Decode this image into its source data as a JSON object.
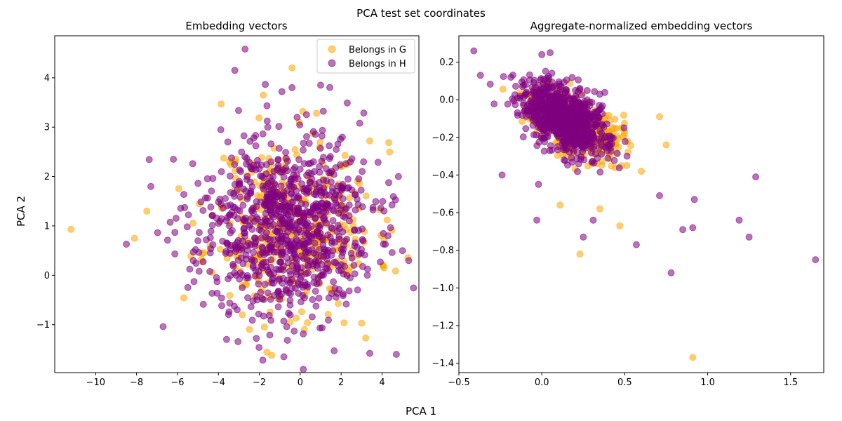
{
  "figure": {
    "suptitle": "PCA test set coordinates",
    "xlabel": "PCA 1",
    "ylabel": "PCA 2"
  },
  "colors": {
    "G": "#ffa500",
    "H": "#800080",
    "alpha": 0.55
  },
  "chart_data": [
    {
      "type": "scatter",
      "title": "Embedding vectors",
      "xlabel": "PCA 1",
      "ylabel": "PCA 2",
      "xlim": [
        -12.0,
        5.8
      ],
      "ylim": [
        -1.97,
        4.85
      ],
      "xticks": [
        -10,
        -8,
        -6,
        -4,
        -2,
        0,
        2,
        4
      ],
      "yticks": [
        -1,
        0,
        1,
        2,
        3,
        4
      ],
      "xtick_labels": [
        "−10",
        "−8",
        "−6",
        "−4",
        "−2",
        "0",
        "2",
        "4"
      ],
      "ytick_labels": [
        "−1",
        "0",
        "1",
        "2",
        "3",
        "4"
      ],
      "legend": {
        "position": "top-right",
        "entries": [
          "Belongs in G",
          "Belongs in H"
        ]
      },
      "grid": false,
      "series": [
        {
          "name": "Belongs in G",
          "color": "#ffa500",
          "outliers": [
            [
              -11.2,
              0.93
            ],
            [
              -0.4,
              4.2
            ],
            [
              -1.8,
              3.65
            ],
            [
              3.4,
              2.72
            ],
            [
              -0.05,
              3.1
            ],
            [
              2.0,
              2.2
            ],
            [
              3.2,
              -1.27
            ],
            [
              -1.4,
              -1.62
            ],
            [
              -8.1,
              0.75
            ],
            [
              -7.5,
              1.3
            ],
            [
              0.8,
              3.28
            ],
            [
              4.1,
              0.72
            ],
            [
              -0.5,
              -0.95
            ],
            [
              0.2,
              -1.1
            ],
            [
              3.0,
              -0.97
            ]
          ],
          "cluster": {
            "n": 360,
            "mean": [
              -0.3,
              1.0
            ],
            "sd": [
              2.0,
              0.85
            ],
            "seed": 11
          }
        },
        {
          "name": "Belongs in H",
          "color": "#800080",
          "outliers": [
            [
              -2.7,
              4.58
            ],
            [
              -3.2,
              4.15
            ],
            [
              1.0,
              3.85
            ],
            [
              -0.4,
              3.8
            ],
            [
              2.3,
              3.49
            ],
            [
              -8.5,
              0.63
            ],
            [
              5.0,
              0.5
            ],
            [
              4.7,
              -1.6
            ],
            [
              3.4,
              -1.58
            ],
            [
              -0.8,
              -1.65
            ],
            [
              -3.6,
              -1.3
            ],
            [
              -6.7,
              -1.04
            ],
            [
              -7.3,
              1.8
            ],
            [
              -6.2,
              2.35
            ],
            [
              4.8,
              2.0
            ]
          ],
          "cluster": {
            "n": 900,
            "mean": [
              -0.8,
              0.95
            ],
            "sd": [
              2.1,
              0.9
            ],
            "seed": 23
          }
        }
      ]
    },
    {
      "type": "scatter",
      "title": "Aggregate-normalized embedding vectors",
      "xlabel": "PCA 1",
      "ylabel": "PCA 2",
      "xlim": [
        -0.5,
        1.7
      ],
      "ylim": [
        -1.45,
        0.34
      ],
      "xticks": [
        -0.5,
        0.0,
        0.5,
        1.0,
        1.5
      ],
      "yticks": [
        -1.4,
        -1.2,
        -1.0,
        -0.8,
        -0.6,
        -0.4,
        -0.2,
        0.0,
        0.2
      ],
      "xtick_labels": [
        "−0.5",
        "0.0",
        "0.5",
        "1.0",
        "1.5"
      ],
      "ytick_labels": [
        "−1.4",
        "−1.2",
        "−1.0",
        "−0.8",
        "−0.6",
        "−0.4",
        "−0.2",
        "0.0",
        "0.2"
      ],
      "grid": false,
      "series": [
        {
          "name": "Belongs in G",
          "color": "#ffa500",
          "outliers": [
            [
              0.91,
              -1.37
            ],
            [
              0.23,
              -0.82
            ],
            [
              0.47,
              -0.67
            ],
            [
              0.71,
              -0.09
            ],
            [
              0.75,
              -0.24
            ],
            [
              0.6,
              -0.38
            ],
            [
              0.35,
              -0.58
            ],
            [
              0.11,
              -0.56
            ]
          ],
          "cluster": {
            "n": 320,
            "mean": [
              0.2,
              -0.13
            ],
            "sd": [
              0.14,
              0.085
            ],
            "seed": 37
          }
        },
        {
          "name": "Belongs in H",
          "color": "#800080",
          "outliers": [
            [
              1.65,
              -0.85
            ],
            [
              1.29,
              -0.41
            ],
            [
              1.25,
              -0.73
            ],
            [
              1.19,
              -0.64
            ],
            [
              0.92,
              -0.53
            ],
            [
              0.91,
              -0.68
            ],
            [
              0.85,
              -0.69
            ],
            [
              0.78,
              -0.92
            ],
            [
              0.57,
              -0.77
            ],
            [
              0.31,
              -0.64
            ],
            [
              0.25,
              -0.73
            ],
            [
              -0.03,
              -0.64
            ],
            [
              -0.41,
              0.26
            ],
            [
              -0.37,
              0.13
            ],
            [
              -0.24,
              -0.4
            ],
            [
              0.05,
              0.25
            ],
            [
              0.0,
              0.24
            ],
            [
              0.71,
              -0.51
            ],
            [
              -0.02,
              -0.45
            ]
          ],
          "cluster": {
            "n": 900,
            "mean": [
              0.14,
              -0.1
            ],
            "sd": [
              0.13,
              0.085
            ],
            "seed": 53
          }
        }
      ]
    }
  ]
}
